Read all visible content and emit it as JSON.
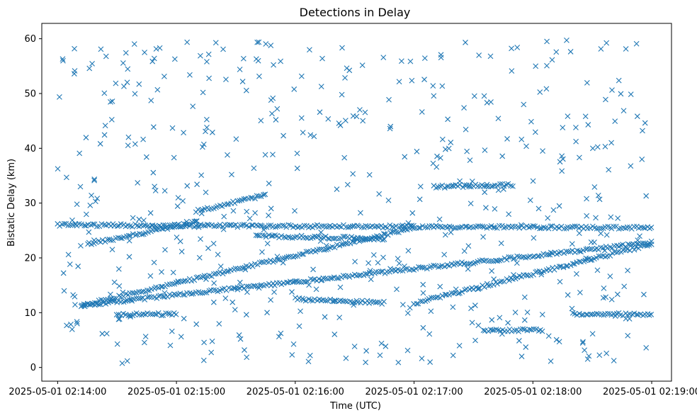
{
  "chart_data": {
    "type": "scatter",
    "title": "Detections in Delay",
    "xlabel": "Time (UTC)",
    "ylabel": "Bistatic Delay (km)",
    "x_start": "2025-05-01 02:14:00",
    "xlim_seconds": [
      -8,
      310
    ],
    "ylim": [
      -2.5,
      62.8
    ],
    "xticks": [
      "2025-05-01 02:14:00",
      "2025-05-01 02:15:00",
      "2025-05-01 02:16:00",
      "2025-05-01 02:17:00",
      "2025-05-01 02:18:00",
      "2025-05-01 02:19:00"
    ],
    "yticks": [
      "0",
      "10",
      "20",
      "30",
      "40",
      "50",
      "60"
    ],
    "marker": "x",
    "color": "#1f77b4",
    "grid": false,
    "legend": "none",
    "tracks": [
      {
        "t0": 12,
        "t1": 300,
        "y0": 11.3,
        "y1": 22.8,
        "note": "slow rising track"
      },
      {
        "t0": 12,
        "t1": 180,
        "y0": 11.3,
        "y1": 25.5,
        "note": "fast rising track"
      },
      {
        "t0": 180,
        "t1": 300,
        "y0": 11.7,
        "y1": 22.5,
        "note": "second rising track"
      },
      {
        "t0": 15,
        "t1": 70,
        "y0": 22.5,
        "y1": 26.5,
        "note": "early rising"
      },
      {
        "t0": 70,
        "t1": 105,
        "y0": 28.5,
        "y1": 31.5,
        "note": "short segment"
      },
      {
        "t0": 0,
        "t1": 300,
        "y0": 26.0,
        "y1": 25.5,
        "note": "flat band"
      },
      {
        "t0": 100,
        "t1": 165,
        "y0": 24.0,
        "y1": 23.5,
        "note": "flat band 2"
      },
      {
        "t0": 120,
        "t1": 165,
        "y0": 12.5,
        "y1": 11.8,
        "note": "flat low band"
      },
      {
        "t0": 190,
        "t1": 230,
        "y0": 33.0,
        "y1": 33.3,
        "note": "flat 33"
      },
      {
        "t0": 215,
        "t1": 245,
        "y0": 6.8,
        "y1": 6.8,
        "note": "flat 6.8"
      },
      {
        "t0": 260,
        "t1": 300,
        "y0": 9.7,
        "y1": 9.7,
        "note": "flat 9.7"
      },
      {
        "t0": 30,
        "t1": 60,
        "y0": 9.7,
        "y1": 9.7,
        "note": "flat 9.7 early"
      }
    ],
    "scatter_count": 520,
    "scatter_note": "uniform random noise detections across 0–60 km over the full time window"
  }
}
